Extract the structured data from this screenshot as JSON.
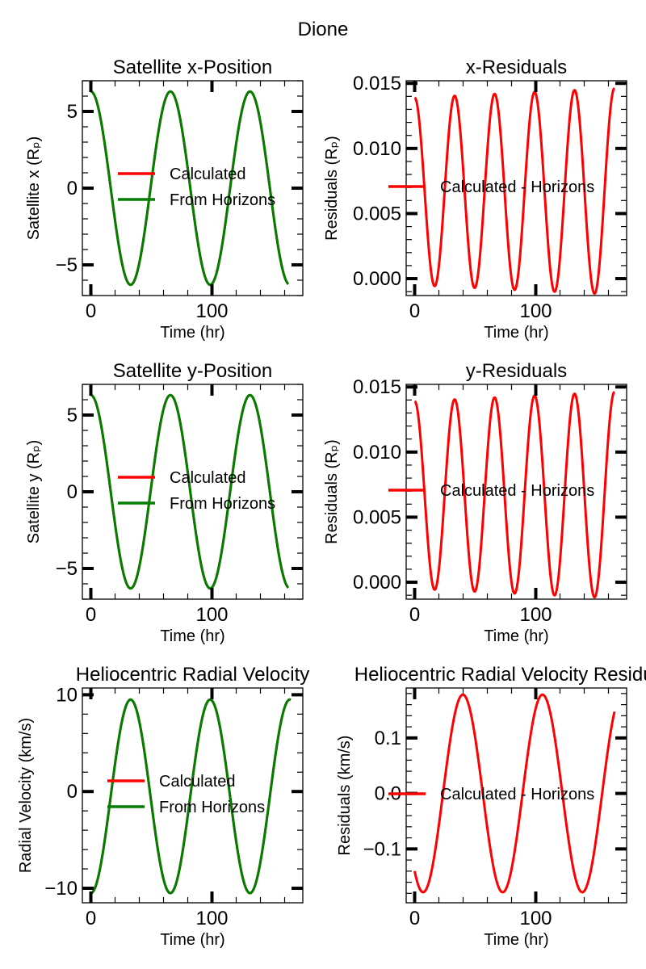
{
  "suptitle": "Dione",
  "chart_data": [
    {
      "type": "line",
      "title": "Satellite x-Position",
      "xlabel": "Time (hr)",
      "ylabel": "Satellite x (Rₚ)",
      "xlim": [
        -7,
        175
      ],
      "ylim": [
        -7,
        7
      ],
      "xticks": [
        0,
        100
      ],
      "yticks": [
        -5,
        0,
        5
      ],
      "yticklabels": [
        "−5",
        "0",
        "5"
      ],
      "model": {
        "kind": "cos",
        "amplitude": 6.3,
        "period": 65.7,
        "phase_hr": 0,
        "offset": 0,
        "x_start": 0,
        "x_end": 163
      },
      "legend_entries": [
        "Calculated",
        "From Horizons"
      ],
      "series": [
        {
          "name": "Calculated",
          "color": "#ff0000"
        },
        {
          "name": "From Horizons",
          "color": "#008000"
        }
      ]
    },
    {
      "type": "line",
      "title": "x-Residuals",
      "xlabel": "Time (hr)",
      "ylabel": "Residuals (Rₚ)",
      "xlim": [
        -7,
        175
      ],
      "ylim": [
        -0.0013,
        0.0152
      ],
      "xticks": [
        0,
        100
      ],
      "yticks": [
        0,
        0.005,
        0.01,
        0.015
      ],
      "yticklabels": [
        "0.000",
        "0.005",
        "0.010",
        "0.015"
      ],
      "model": {
        "kind": "cos",
        "amplitude": 0.0072,
        "amplitude_growth_per_hr": 4.4e-06,
        "period": 33.0,
        "phase_hr": 0,
        "offset": 0.0067,
        "x_start": 0,
        "x_end": 165
      },
      "legend_entries": [
        "Calculated - Horizons"
      ],
      "series": [
        {
          "name": "Calculated - Horizons",
          "color": "#ff0000"
        }
      ]
    },
    {
      "type": "line",
      "title": "Satellite y-Position",
      "xlabel": "Time (hr)",
      "ylabel": "Satellite y (Rₚ)",
      "xlim": [
        -7,
        175
      ],
      "ylim": [
        -7,
        7
      ],
      "xticks": [
        0,
        100
      ],
      "yticks": [
        -5,
        0,
        5
      ],
      "yticklabels": [
        "−5",
        "0",
        "5"
      ],
      "model": {
        "kind": "cos",
        "amplitude": 6.3,
        "period": 65.7,
        "phase_hr": 0,
        "offset": 0,
        "x_start": 0,
        "x_end": 163
      },
      "legend_entries": [
        "Calculated",
        "From Horizons"
      ],
      "series": [
        {
          "name": "Calculated",
          "color": "#ff0000"
        },
        {
          "name": "From Horizons",
          "color": "#008000"
        }
      ]
    },
    {
      "type": "line",
      "title": "y-Residuals",
      "xlabel": "Time (hr)",
      "ylabel": "Residuals (Rₚ)",
      "xlim": [
        -7,
        175
      ],
      "ylim": [
        -0.0013,
        0.0152
      ],
      "xticks": [
        0,
        100
      ],
      "yticks": [
        0,
        0.005,
        0.01,
        0.015
      ],
      "yticklabels": [
        "0.000",
        "0.005",
        "0.010",
        "0.015"
      ],
      "model": {
        "kind": "cos",
        "amplitude": 0.0072,
        "amplitude_growth_per_hr": 4.4e-06,
        "period": 33.0,
        "phase_hr": 0,
        "offset": 0.0067,
        "x_start": 0,
        "x_end": 165
      },
      "legend_entries": [
        "Calculated - Horizons"
      ],
      "series": [
        {
          "name": "Calculated - Horizons",
          "color": "#ff0000"
        }
      ]
    },
    {
      "type": "line",
      "title": "Heliocentric Radial Velocity",
      "xlabel": "Time (hr)",
      "ylabel": "Radial Velocity (km/s)",
      "xlim": [
        -7,
        175
      ],
      "ylim": [
        -11.5,
        10.7
      ],
      "xticks": [
        0,
        100
      ],
      "yticks": [
        -10,
        0,
        10
      ],
      "yticklabels": [
        "−10",
        "0",
        "10"
      ],
      "model": {
        "kind": "sin",
        "amplitude": 10.0,
        "period": 65.7,
        "phase_hr": 16.4,
        "offset": -0.5,
        "x_start": 0,
        "x_end": 165
      },
      "legend_entries": [
        "Calculated",
        "From Horizons"
      ],
      "series": [
        {
          "name": "Calculated",
          "color": "#ff0000"
        },
        {
          "name": "From Horizons",
          "color": "#008000"
        }
      ]
    },
    {
      "type": "line",
      "title": "Heliocentric Radial Velocity Residuals",
      "xlabel": "Time (hr)",
      "ylabel": "Residuals (km/s)",
      "xlim": [
        -7,
        175
      ],
      "ylim": [
        -0.197,
        0.19
      ],
      "xticks": [
        0,
        100
      ],
      "yticks": [
        -0.1,
        0,
        0.1
      ],
      "yticklabels": [
        "−0.1",
        "0.0",
        "0.1"
      ],
      "model": {
        "kind": "sin",
        "amplitude": 0.178,
        "period": 65.7,
        "phase_hr": 23.4,
        "offset": 0,
        "x_start": 0,
        "x_end": 165
      },
      "legend_entries": [
        "Calculated - Horizons"
      ],
      "series": [
        {
          "name": "Calculated - Horizons",
          "color": "#ff0000"
        }
      ]
    }
  ]
}
